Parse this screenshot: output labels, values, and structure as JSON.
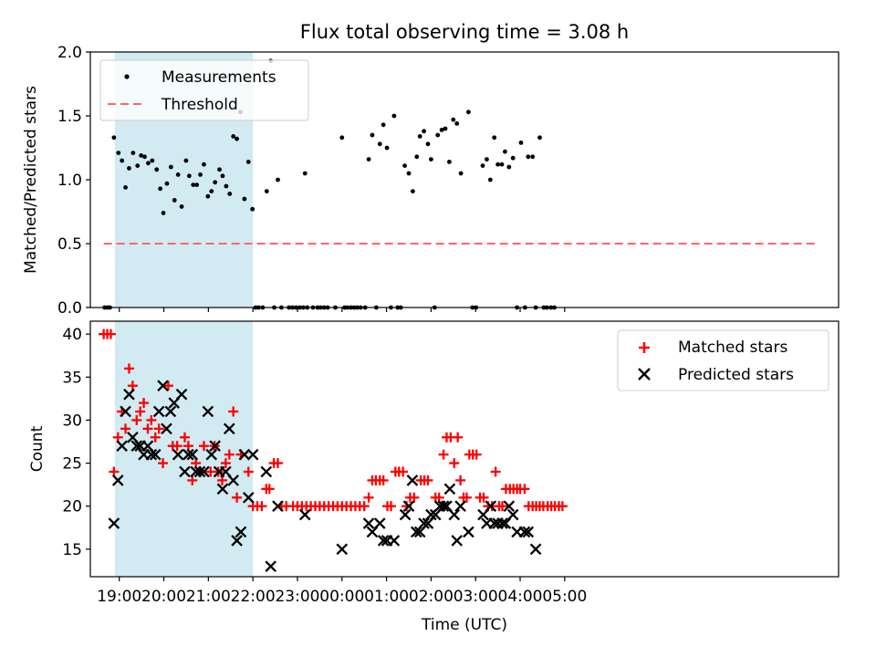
{
  "title": "Flux total observing time = 3.08 h",
  "colors": {
    "highlight": "#add8e6",
    "measure": "#000000",
    "threshold": "#ff6666",
    "matched": "#ff0000",
    "predicted": "#000000"
  },
  "chart_data": [
    {
      "type": "scatter",
      "ylabel": "Matched/Predicted stars",
      "xlim": [
        -4.65,
        12.15
      ],
      "ylim": [
        0,
        2.0
      ],
      "yticks": [
        "0.0",
        "0.5",
        "1.0",
        "1.5",
        "2.0"
      ],
      "xticks": [
        "19:00",
        "20:00",
        "21:00",
        "22:00",
        "23:00",
        "00:00",
        "01:00",
        "02:00",
        "03:00",
        "04:00",
        "05:00"
      ],
      "legend": [
        "Measurements",
        "Threshold"
      ],
      "legend_position": "upper-left",
      "highlight_span": [
        -4.1,
        -1.0
      ],
      "threshold": {
        "y": 0.5,
        "x": [
          -4.35,
          11.65
        ]
      },
      "measurements": [
        [
          -4.33,
          0
        ],
        [
          -4.27,
          0
        ],
        [
          -4.21,
          0
        ],
        [
          -4.12,
          1.33
        ],
        [
          -4.02,
          1.21
        ],
        [
          -3.94,
          1.15
        ],
        [
          -3.86,
          0.94
        ],
        [
          -3.78,
          1.09
        ],
        [
          -3.69,
          1.21
        ],
        [
          -3.59,
          1.11
        ],
        [
          -3.51,
          1.19
        ],
        [
          -3.43,
          1.18
        ],
        [
          -3.35,
          1.13
        ],
        [
          -3.26,
          1.15
        ],
        [
          -3.16,
          1.08
        ],
        [
          -3.08,
          0.93
        ],
        [
          -3.01,
          0.74
        ],
        [
          -2.93,
          0.97
        ],
        [
          -2.84,
          1.1
        ],
        [
          -2.76,
          0.84
        ],
        [
          -2.68,
          1.04
        ],
        [
          -2.6,
          0.79
        ],
        [
          -2.5,
          1.15
        ],
        [
          -2.43,
          1.03
        ],
        [
          -2.34,
          0.96
        ],
        [
          -2.26,
          0.96
        ],
        [
          -2.18,
          1.04
        ],
        [
          -2.1,
          1.12
        ],
        [
          -2.01,
          0.87
        ],
        [
          -1.93,
          0.91
        ],
        [
          -1.85,
          0.98
        ],
        [
          -1.75,
          1.08
        ],
        [
          -1.68,
          1.03
        ],
        [
          -1.6,
          0.95
        ],
        [
          -1.52,
          0.89
        ],
        [
          -1.44,
          1.34
        ],
        [
          -1.36,
          1.32
        ],
        [
          -1.28,
          1.53
        ],
        [
          -1.19,
          0.85
        ],
        [
          -1.1,
          1.14
        ],
        [
          -1.01,
          0.77
        ],
        [
          -0.94,
          0
        ],
        [
          -0.87,
          0
        ],
        [
          -0.78,
          0
        ],
        [
          -0.69,
          0.91
        ],
        [
          -0.6,
          1.93
        ],
        [
          -0.52,
          0
        ],
        [
          -0.44,
          1.0
        ],
        [
          -0.36,
          0
        ],
        [
          -0.19,
          0
        ],
        [
          -0.11,
          0
        ],
        [
          -0.03,
          0
        ],
        [
          0.05,
          0
        ],
        [
          0.13,
          0
        ],
        [
          0.17,
          1.05
        ],
        [
          0.22,
          0
        ],
        [
          0.35,
          0
        ],
        [
          0.45,
          0
        ],
        [
          0.52,
          0
        ],
        [
          0.6,
          0
        ],
        [
          0.68,
          0
        ],
        [
          0.85,
          0
        ],
        [
          1.0,
          1.33
        ],
        [
          1.06,
          0
        ],
        [
          1.12,
          0
        ],
        [
          1.2,
          0
        ],
        [
          1.27,
          0
        ],
        [
          1.34,
          0
        ],
        [
          1.42,
          0
        ],
        [
          1.52,
          0
        ],
        [
          1.6,
          1.16
        ],
        [
          1.68,
          1.35
        ],
        [
          1.77,
          0
        ],
        [
          1.85,
          1.28
        ],
        [
          1.93,
          1.43
        ],
        [
          2.01,
          1.25
        ],
        [
          2.1,
          0
        ],
        [
          2.17,
          1.5
        ],
        [
          2.25,
          0
        ],
        [
          2.32,
          0
        ],
        [
          2.41,
          1.11
        ],
        [
          2.5,
          1.05
        ],
        [
          2.59,
          0.91
        ],
        [
          2.68,
          1.18
        ],
        [
          2.75,
          1.34
        ],
        [
          2.84,
          1.38
        ],
        [
          2.93,
          1.28
        ],
        [
          3.0,
          1.16
        ],
        [
          3.08,
          0
        ],
        [
          3.15,
          1.35
        ],
        [
          3.24,
          1.39
        ],
        [
          3.32,
          1.4
        ],
        [
          3.41,
          1.14
        ],
        [
          3.5,
          1.47
        ],
        [
          3.58,
          1.44
        ],
        [
          3.67,
          1.05
        ],
        [
          3.84,
          1.53
        ],
        [
          3.93,
          0
        ],
        [
          4.01,
          0
        ],
        [
          4.16,
          1.11
        ],
        [
          4.25,
          1.16
        ],
        [
          4.33,
          1.0
        ],
        [
          4.42,
          1.33
        ],
        [
          4.5,
          1.12
        ],
        [
          4.59,
          1.12
        ],
        [
          4.66,
          1.22
        ],
        [
          4.75,
          1.1
        ],
        [
          4.84,
          1.17
        ],
        [
          4.93,
          0
        ],
        [
          5.02,
          1.29
        ],
        [
          5.11,
          0
        ],
        [
          5.18,
          1.18
        ],
        [
          5.28,
          1.18
        ],
        [
          5.35,
          0
        ],
        [
          5.44,
          1.33
        ],
        [
          5.53,
          0
        ],
        [
          5.6,
          0
        ],
        [
          5.69,
          0
        ],
        [
          5.77,
          0
        ]
      ]
    },
    {
      "type": "scatter",
      "xlabel": "Time (UTC)",
      "ylabel": "Count",
      "xlim": [
        -4.65,
        12.15
      ],
      "ylim": [
        11.8,
        41.5
      ],
      "yticks": [
        "15",
        "20",
        "25",
        "30",
        "35",
        "40"
      ],
      "xticks": [
        "19:00",
        "20:00",
        "21:00",
        "22:00",
        "23:00",
        "00:00",
        "01:00",
        "02:00",
        "03:00",
        "04:00",
        "05:00"
      ],
      "legend": [
        "Matched stars",
        "Predicted stars"
      ],
      "legend_position": "upper-right",
      "highlight_span": [
        -4.1,
        -1.0
      ],
      "matched": [
        [
          -4.35,
          40
        ],
        [
          -4.27,
          40
        ],
        [
          -4.19,
          40
        ],
        [
          -4.12,
          24
        ],
        [
          -4.03,
          28
        ],
        [
          -3.94,
          31
        ],
        [
          -3.86,
          29
        ],
        [
          -3.78,
          36
        ],
        [
          -3.7,
          34
        ],
        [
          -3.61,
          30
        ],
        [
          -3.53,
          31
        ],
        [
          -3.45,
          32
        ],
        [
          -3.36,
          29
        ],
        [
          -3.28,
          30
        ],
        [
          -3.19,
          28
        ],
        [
          -3.11,
          29
        ],
        [
          -3.02,
          25
        ],
        [
          -2.9,
          34
        ],
        [
          -2.8,
          27
        ],
        [
          -2.7,
          27
        ],
        [
          -2.53,
          28
        ],
        [
          -2.45,
          27
        ],
        [
          -2.36,
          23
        ],
        [
          -2.28,
          25
        ],
        [
          -2.19,
          24
        ],
        [
          -2.1,
          27
        ],
        [
          -1.95,
          24
        ],
        [
          -1.86,
          27
        ],
        [
          -1.78,
          24
        ],
        [
          -1.69,
          23
        ],
        [
          -1.61,
          25
        ],
        [
          -1.53,
          26
        ],
        [
          -1.44,
          31
        ],
        [
          -1.36,
          21
        ],
        [
          -1.27,
          26
        ],
        [
          -1.1,
          24
        ],
        [
          -1.0,
          20
        ],
        [
          -0.9,
          20
        ],
        [
          -0.8,
          20
        ],
        [
          -0.7,
          22
        ],
        [
          -0.63,
          22
        ],
        [
          -0.53,
          25
        ],
        [
          -0.44,
          25
        ],
        [
          -0.36,
          20
        ],
        [
          -0.25,
          20
        ],
        [
          -0.1,
          20
        ],
        [
          0.0,
          20
        ],
        [
          0.1,
          20
        ],
        [
          0.2,
          20
        ],
        [
          0.3,
          20
        ],
        [
          0.4,
          20
        ],
        [
          0.5,
          20
        ],
        [
          0.6,
          20
        ],
        [
          0.7,
          20
        ],
        [
          0.8,
          20
        ],
        [
          0.9,
          20
        ],
        [
          1.0,
          20
        ],
        [
          1.1,
          20
        ],
        [
          1.2,
          20
        ],
        [
          1.3,
          20
        ],
        [
          1.4,
          20
        ],
        [
          1.5,
          20
        ],
        [
          1.6,
          21
        ],
        [
          1.68,
          23
        ],
        [
          1.76,
          23
        ],
        [
          1.85,
          23
        ],
        [
          1.93,
          23
        ],
        [
          2.02,
          20
        ],
        [
          2.1,
          20
        ],
        [
          2.2,
          24
        ],
        [
          2.28,
          24
        ],
        [
          2.37,
          24
        ],
        [
          2.45,
          20
        ],
        [
          2.53,
          21
        ],
        [
          2.62,
          21
        ],
        [
          2.77,
          23
        ],
        [
          2.85,
          23
        ],
        [
          2.93,
          23
        ],
        [
          3.1,
          21
        ],
        [
          3.18,
          21
        ],
        [
          3.28,
          26
        ],
        [
          3.35,
          28
        ],
        [
          3.44,
          28
        ],
        [
          3.52,
          25
        ],
        [
          3.6,
          28
        ],
        [
          3.66,
          23
        ],
        [
          3.73,
          21
        ],
        [
          3.8,
          21
        ],
        [
          3.86,
          26
        ],
        [
          3.94,
          26
        ],
        [
          4.02,
          26
        ],
        [
          4.1,
          21
        ],
        [
          4.18,
          21
        ],
        [
          4.28,
          20
        ],
        [
          4.37,
          20
        ],
        [
          4.45,
          24
        ],
        [
          4.53,
          20
        ],
        [
          4.6,
          20
        ],
        [
          4.68,
          22
        ],
        [
          4.77,
          22
        ],
        [
          4.85,
          22
        ],
        [
          4.93,
          22
        ],
        [
          5.0,
          22
        ],
        [
          5.1,
          22
        ],
        [
          5.19,
          20
        ],
        [
          5.28,
          20
        ],
        [
          5.36,
          20
        ],
        [
          5.44,
          20
        ],
        [
          5.52,
          20
        ],
        [
          5.62,
          20
        ],
        [
          5.7,
          20
        ],
        [
          5.78,
          20
        ],
        [
          5.87,
          20
        ],
        [
          5.95,
          20
        ]
      ],
      "predicted": [
        [
          -4.12,
          18
        ],
        [
          -4.03,
          23
        ],
        [
          -3.94,
          27
        ],
        [
          -3.86,
          31
        ],
        [
          -3.78,
          33
        ],
        [
          -3.7,
          28
        ],
        [
          -3.61,
          27
        ],
        [
          -3.53,
          27
        ],
        [
          -3.45,
          26
        ],
        [
          -3.36,
          27
        ],
        [
          -3.28,
          26
        ],
        [
          -3.19,
          26
        ],
        [
          -3.11,
          31
        ],
        [
          -3.02,
          34
        ],
        [
          -2.94,
          29
        ],
        [
          -2.85,
          31
        ],
        [
          -2.77,
          32
        ],
        [
          -2.68,
          26
        ],
        [
          -2.6,
          33
        ],
        [
          -2.53,
          24
        ],
        [
          -2.45,
          26
        ],
        [
          -2.36,
          26
        ],
        [
          -2.28,
          24
        ],
        [
          -2.19,
          24
        ],
        [
          -2.1,
          24
        ],
        [
          -2.01,
          31
        ],
        [
          -1.93,
          26
        ],
        [
          -1.85,
          27
        ],
        [
          -1.76,
          24
        ],
        [
          -1.68,
          22
        ],
        [
          -1.61,
          24
        ],
        [
          -1.53,
          29
        ],
        [
          -1.44,
          23
        ],
        [
          -1.36,
          16
        ],
        [
          -1.27,
          17
        ],
        [
          -1.19,
          26
        ],
        [
          -1.1,
          21
        ],
        [
          -1.0,
          26
        ],
        [
          -0.7,
          24
        ],
        [
          -0.6,
          13
        ],
        [
          -0.44,
          20
        ],
        [
          0.17,
          19
        ],
        [
          1.0,
          15
        ],
        [
          1.6,
          18
        ],
        [
          1.68,
          17
        ],
        [
          1.85,
          18
        ],
        [
          1.93,
          16
        ],
        [
          2.01,
          16
        ],
        [
          2.17,
          16
        ],
        [
          2.42,
          19
        ],
        [
          2.5,
          20
        ],
        [
          2.58,
          23
        ],
        [
          2.67,
          17
        ],
        [
          2.75,
          17
        ],
        [
          2.84,
          18
        ],
        [
          2.93,
          18
        ],
        [
          3.0,
          19
        ],
        [
          3.1,
          19
        ],
        [
          3.2,
          20
        ],
        [
          3.28,
          20
        ],
        [
          3.35,
          20
        ],
        [
          3.42,
          22
        ],
        [
          3.52,
          19
        ],
        [
          3.58,
          16
        ],
        [
          3.66,
          20
        ],
        [
          3.84,
          17
        ],
        [
          4.17,
          19
        ],
        [
          4.25,
          18
        ],
        [
          4.34,
          20
        ],
        [
          4.42,
          18
        ],
        [
          4.5,
          18
        ],
        [
          4.6,
          18
        ],
        [
          4.67,
          18
        ],
        [
          4.75,
          20
        ],
        [
          4.84,
          19
        ],
        [
          4.93,
          17
        ],
        [
          5.1,
          17
        ],
        [
          5.18,
          17
        ],
        [
          5.35,
          15
        ]
      ]
    }
  ]
}
